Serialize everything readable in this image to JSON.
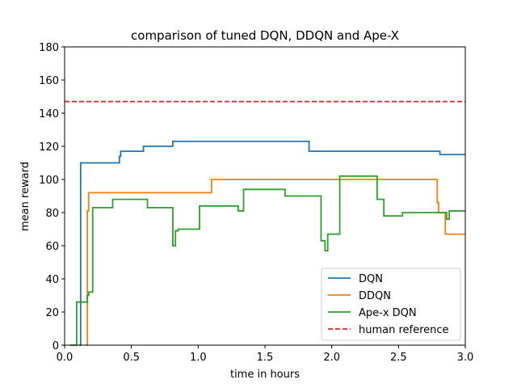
{
  "chart_data": {
    "type": "line",
    "title": "comparison of tuned DQN, DDQN and Ape-X",
    "xlabel": "time in hours",
    "ylabel": "mean reward",
    "xlim": [
      0.0,
      3.0
    ],
    "ylim": [
      0,
      180
    ],
    "xticks": [
      0.0,
      0.5,
      1.0,
      1.5,
      2.0,
      2.5,
      3.0
    ],
    "xtick_labels": [
      "0.0",
      "0.5",
      "1.0",
      "1.5",
      "2.0",
      "2.5",
      "3.0"
    ],
    "yticks": [
      0,
      20,
      40,
      60,
      80,
      100,
      120,
      140,
      160,
      180
    ],
    "ytick_labels": [
      "0",
      "20",
      "40",
      "60",
      "80",
      "100",
      "120",
      "140",
      "160",
      "180"
    ],
    "grid": false,
    "legend_position": "bottom-right",
    "series": [
      {
        "name": "DQN",
        "color": "#1f77b4",
        "style": "solid",
        "x": [
          0.11,
          0.12,
          0.12,
          0.41,
          0.41,
          0.42,
          0.42,
          0.59,
          0.59,
          0.81,
          0.81,
          1.83,
          1.83,
          2.81,
          2.81,
          3.0
        ],
        "y": [
          0,
          0,
          110,
          110,
          114,
          114,
          117,
          117,
          120,
          120,
          123,
          123,
          117,
          117,
          115,
          115
        ]
      },
      {
        "name": "DDQN",
        "color": "#ff7f0e",
        "style": "solid",
        "x": [
          0.16,
          0.17,
          0.17,
          0.18,
          0.18,
          1.1,
          1.1,
          2.79,
          2.79,
          2.8,
          2.8,
          2.85,
          2.85,
          3.0
        ],
        "y": [
          0,
          0,
          81,
          81,
          92,
          92,
          100,
          100,
          86,
          86,
          80,
          80,
          67,
          67
        ]
      },
      {
        "name": "Ape-x DQN",
        "color": "#2ca02c",
        "style": "solid",
        "x": [
          0.04,
          0.09,
          0.09,
          0.1,
          0.1,
          0.17,
          0.17,
          0.18,
          0.18,
          0.21,
          0.21,
          0.36,
          0.36,
          0.62,
          0.62,
          0.81,
          0.81,
          0.83,
          0.83,
          0.85,
          0.85,
          0.88,
          0.88,
          1.01,
          1.01,
          1.3,
          1.3,
          1.34,
          1.34,
          1.65,
          1.65,
          1.92,
          1.92,
          1.95,
          1.95,
          1.97,
          1.97,
          2.0,
          2.0,
          2.06,
          2.06,
          2.34,
          2.34,
          2.39,
          2.39,
          2.53,
          2.53,
          2.82,
          2.82,
          2.86,
          2.86,
          2.88,
          2.88,
          3.0
        ],
        "y": [
          0,
          0,
          26,
          26,
          26,
          26,
          30,
          30,
          32,
          32,
          83,
          83,
          88,
          88,
          83,
          83,
          60,
          60,
          69,
          69,
          70,
          70,
          70,
          70,
          84,
          84,
          81,
          81,
          94,
          94,
          90,
          90,
          63,
          63,
          57,
          57,
          67,
          67,
          67,
          67,
          102,
          102,
          88,
          88,
          78,
          78,
          80,
          80,
          80,
          80,
          76,
          76,
          81,
          81
        ]
      },
      {
        "name": "human reference",
        "color": "#d62728",
        "style": "dashed",
        "x": [
          0.0,
          3.0
        ],
        "y": [
          147,
          147
        ]
      }
    ]
  }
}
